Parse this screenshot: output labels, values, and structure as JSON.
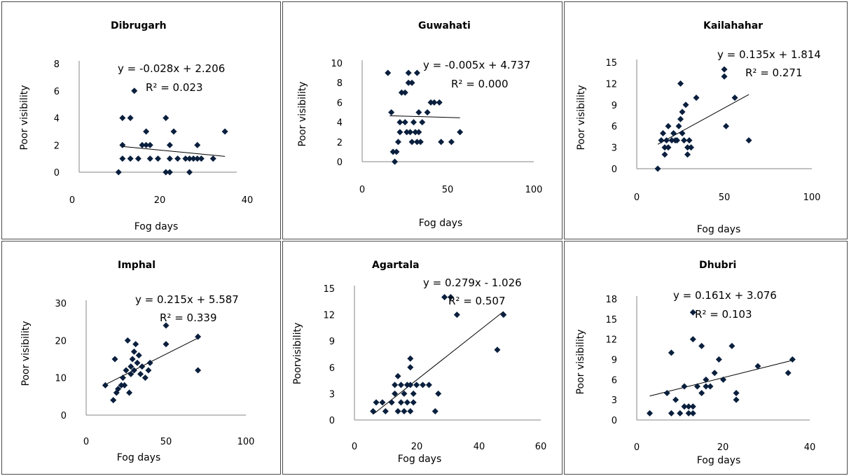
{
  "chart_data": [
    {
      "type": "scatter",
      "title": "Dibrugarh",
      "xlabel": "Fog days",
      "ylabel": "Poor visibility",
      "xlim": [
        0,
        40
      ],
      "ylim": [
        0,
        8
      ],
      "xticks": [
        "0",
        "20",
        "40"
      ],
      "yticks": [
        "0",
        "2",
        "4",
        "6",
        "8"
      ],
      "grid": false,
      "equation": "y = -0.028x + 2.206",
      "r2": "R² = 0.023",
      "trendline": {
        "slope": -0.028,
        "intercept": 2.206,
        "x_range": [
          11,
          37
        ]
      },
      "points": [
        [
          10,
          0
        ],
        [
          11,
          1
        ],
        [
          11,
          2
        ],
        [
          11,
          4
        ],
        [
          13,
          1
        ],
        [
          13,
          4
        ],
        [
          14,
          6
        ],
        [
          15,
          1
        ],
        [
          16,
          2
        ],
        [
          17,
          2
        ],
        [
          17,
          3
        ],
        [
          18,
          1
        ],
        [
          18,
          2
        ],
        [
          20,
          1
        ],
        [
          22,
          0
        ],
        [
          22,
          4
        ],
        [
          23,
          0
        ],
        [
          23,
          2
        ],
        [
          23,
          1
        ],
        [
          24,
          3
        ],
        [
          25,
          1
        ],
        [
          27,
          1
        ],
        [
          28,
          1
        ],
        [
          28,
          0
        ],
        [
          29,
          1
        ],
        [
          30,
          1
        ],
        [
          30,
          2
        ],
        [
          31,
          1
        ],
        [
          34,
          1
        ],
        [
          37,
          3
        ]
      ]
    },
    {
      "type": "scatter",
      "title": "Guwahati",
      "xlabel": "Fog days",
      "ylabel": "Poor visibility",
      "xlim": [
        0,
        100
      ],
      "ylim": [
        0,
        10
      ],
      "xticks": [
        "0",
        "50",
        "100"
      ],
      "yticks": [
        "0",
        "2",
        "4",
        "6",
        "8",
        "10"
      ],
      "grid": false,
      "equation": "y = -0.005x + 4.737",
      "r2": "R² = 0.000",
      "trendline": {
        "slope": -0.005,
        "intercept": 4.737,
        "x_range": [
          16,
          57
        ]
      },
      "points": [
        [
          15,
          9
        ],
        [
          17,
          5
        ],
        [
          18,
          1
        ],
        [
          19,
          0
        ],
        [
          20,
          1
        ],
        [
          21,
          2
        ],
        [
          22,
          4
        ],
        [
          22,
          3
        ],
        [
          23,
          7
        ],
        [
          25,
          7
        ],
        [
          25,
          4
        ],
        [
          26,
          3
        ],
        [
          27,
          8
        ],
        [
          27,
          9
        ],
        [
          28,
          3
        ],
        [
          29,
          2
        ],
        [
          29,
          8
        ],
        [
          30,
          4
        ],
        [
          31,
          3
        ],
        [
          32,
          9
        ],
        [
          32,
          2
        ],
        [
          33,
          3
        ],
        [
          33,
          5
        ],
        [
          34,
          2
        ],
        [
          35,
          4
        ],
        [
          38,
          5
        ],
        [
          40,
          6
        ],
        [
          42,
          6
        ],
        [
          45,
          6
        ],
        [
          46,
          2
        ],
        [
          52,
          2
        ],
        [
          57,
          3
        ]
      ]
    },
    {
      "type": "scatter",
      "title": "Kailahahar",
      "xlabel": "Fog days",
      "ylabel": "Poor visibility",
      "xlim": [
        0,
        100
      ],
      "ylim": [
        0,
        15
      ],
      "xticks": [
        "0",
        "50",
        "100"
      ],
      "yticks": [
        "0",
        "3",
        "6",
        "9",
        "12",
        "15"
      ],
      "grid": false,
      "equation": "y = 0.135x + 1.814",
      "r2": "R² = 0.271",
      "trendline": {
        "slope": 0.135,
        "intercept": 1.814,
        "x_range": [
          12,
          64
        ]
      },
      "points": [
        [
          12,
          0
        ],
        [
          14,
          4
        ],
        [
          15,
          5
        ],
        [
          16,
          2
        ],
        [
          16,
          3
        ],
        [
          17,
          4
        ],
        [
          18,
          6
        ],
        [
          18,
          3
        ],
        [
          20,
          4
        ],
        [
          21,
          5
        ],
        [
          22,
          4
        ],
        [
          23,
          4
        ],
        [
          24,
          6
        ],
        [
          25,
          7
        ],
        [
          25,
          12
        ],
        [
          26,
          5
        ],
        [
          26,
          8
        ],
        [
          27,
          4
        ],
        [
          28,
          9
        ],
        [
          29,
          3
        ],
        [
          29,
          2
        ],
        [
          30,
          4
        ],
        [
          31,
          3
        ],
        [
          34,
          10
        ],
        [
          50,
          13
        ],
        [
          50,
          14
        ],
        [
          51,
          6
        ],
        [
          56,
          10
        ],
        [
          64,
          4
        ]
      ]
    },
    {
      "type": "scatter",
      "title": "Imphal",
      "xlabel": "Fog days",
      "ylabel": "Poor visibility",
      "xlim": [
        0,
        100
      ],
      "ylim": [
        0,
        30
      ],
      "xticks": [
        "0",
        "50",
        "100"
      ],
      "yticks": [
        "0",
        "10",
        "20",
        "30"
      ],
      "grid": false,
      "equation": "y = 0.215x + 5.587",
      "r2": "R² = 0.339",
      "trendline": {
        "slope": 0.215,
        "intercept": 5.587,
        "x_range": [
          12,
          70
        ]
      },
      "points": [
        [
          12,
          8
        ],
        [
          17,
          4
        ],
        [
          18,
          15
        ],
        [
          19,
          6
        ],
        [
          20,
          7
        ],
        [
          22,
          8
        ],
        [
          23,
          10
        ],
        [
          24,
          8
        ],
        [
          25,
          12
        ],
        [
          26,
          20
        ],
        [
          27,
          6
        ],
        [
          28,
          13
        ],
        [
          28,
          11
        ],
        [
          29,
          15
        ],
        [
          30,
          17
        ],
        [
          30,
          12
        ],
        [
          31,
          19
        ],
        [
          32,
          14
        ],
        [
          33,
          16
        ],
        [
          34,
          11
        ],
        [
          35,
          13
        ],
        [
          37,
          10
        ],
        [
          39,
          12
        ],
        [
          40,
          14
        ],
        [
          50,
          24
        ],
        [
          50,
          19
        ],
        [
          70,
          21
        ],
        [
          70,
          12
        ]
      ]
    },
    {
      "type": "scatter",
      "title": "Agartala",
      "xlabel": "Fog days",
      "ylabel": "Poorvisibility",
      "xlim": [
        0,
        60
      ],
      "ylim": [
        0,
        15
      ],
      "xticks": [
        "0",
        "20",
        "40",
        "60"
      ],
      "yticks": [
        "0",
        "3",
        "6",
        "9",
        "12",
        "15"
      ],
      "grid": false,
      "equation": "y = 0.279x - 1.026",
      "r2": "R² = 0.507",
      "trendline": {
        "slope": 0.279,
        "intercept": -1.026,
        "x_range": [
          6,
          48
        ]
      },
      "points": [
        [
          6,
          1
        ],
        [
          7,
          2
        ],
        [
          9,
          2
        ],
        [
          10,
          1
        ],
        [
          12,
          2
        ],
        [
          13,
          3
        ],
        [
          13,
          4
        ],
        [
          14,
          5
        ],
        [
          14,
          1
        ],
        [
          15,
          2
        ],
        [
          15,
          4
        ],
        [
          16,
          3
        ],
        [
          16,
          1
        ],
        [
          17,
          4
        ],
        [
          17,
          2
        ],
        [
          18,
          4
        ],
        [
          18,
          7
        ],
        [
          18,
          6
        ],
        [
          18,
          1
        ],
        [
          19,
          3
        ],
        [
          19,
          2
        ],
        [
          20,
          4
        ],
        [
          22,
          4
        ],
        [
          24,
          4
        ],
        [
          26,
          1
        ],
        [
          27,
          3
        ],
        [
          29,
          14
        ],
        [
          31,
          14
        ],
        [
          33,
          12
        ],
        [
          46,
          8
        ],
        [
          48,
          12
        ]
      ]
    },
    {
      "type": "scatter",
      "title": "Dhubri",
      "xlabel": "Fog days",
      "ylabel": "Poor visibility",
      "xlim": [
        0,
        40
      ],
      "ylim": [
        0,
        18
      ],
      "xticks": [
        "0",
        "20",
        "40"
      ],
      "yticks": [
        "0",
        "3",
        "6",
        "9",
        "12",
        "15",
        "18"
      ],
      "grid": false,
      "equation": "y = 0.161x + 3.076",
      "r2": "R² = 0.103",
      "trendline": {
        "slope": 0.161,
        "intercept": 3.076,
        "x_range": [
          3,
          36
        ]
      },
      "points": [
        [
          3,
          1
        ],
        [
          7,
          4
        ],
        [
          8,
          10
        ],
        [
          8,
          1
        ],
        [
          9,
          3
        ],
        [
          10,
          1
        ],
        [
          11,
          5
        ],
        [
          11,
          2
        ],
        [
          12,
          1
        ],
        [
          12,
          2
        ],
        [
          13,
          16
        ],
        [
          13,
          12
        ],
        [
          13,
          1
        ],
        [
          13,
          2
        ],
        [
          14,
          5
        ],
        [
          15,
          11
        ],
        [
          15,
          4
        ],
        [
          16,
          5
        ],
        [
          16,
          6
        ],
        [
          17,
          5
        ],
        [
          18,
          7
        ],
        [
          19,
          9
        ],
        [
          20,
          6
        ],
        [
          22,
          11
        ],
        [
          23,
          4
        ],
        [
          23,
          3
        ],
        [
          28,
          8
        ],
        [
          35,
          7
        ],
        [
          36,
          9
        ]
      ]
    }
  ]
}
